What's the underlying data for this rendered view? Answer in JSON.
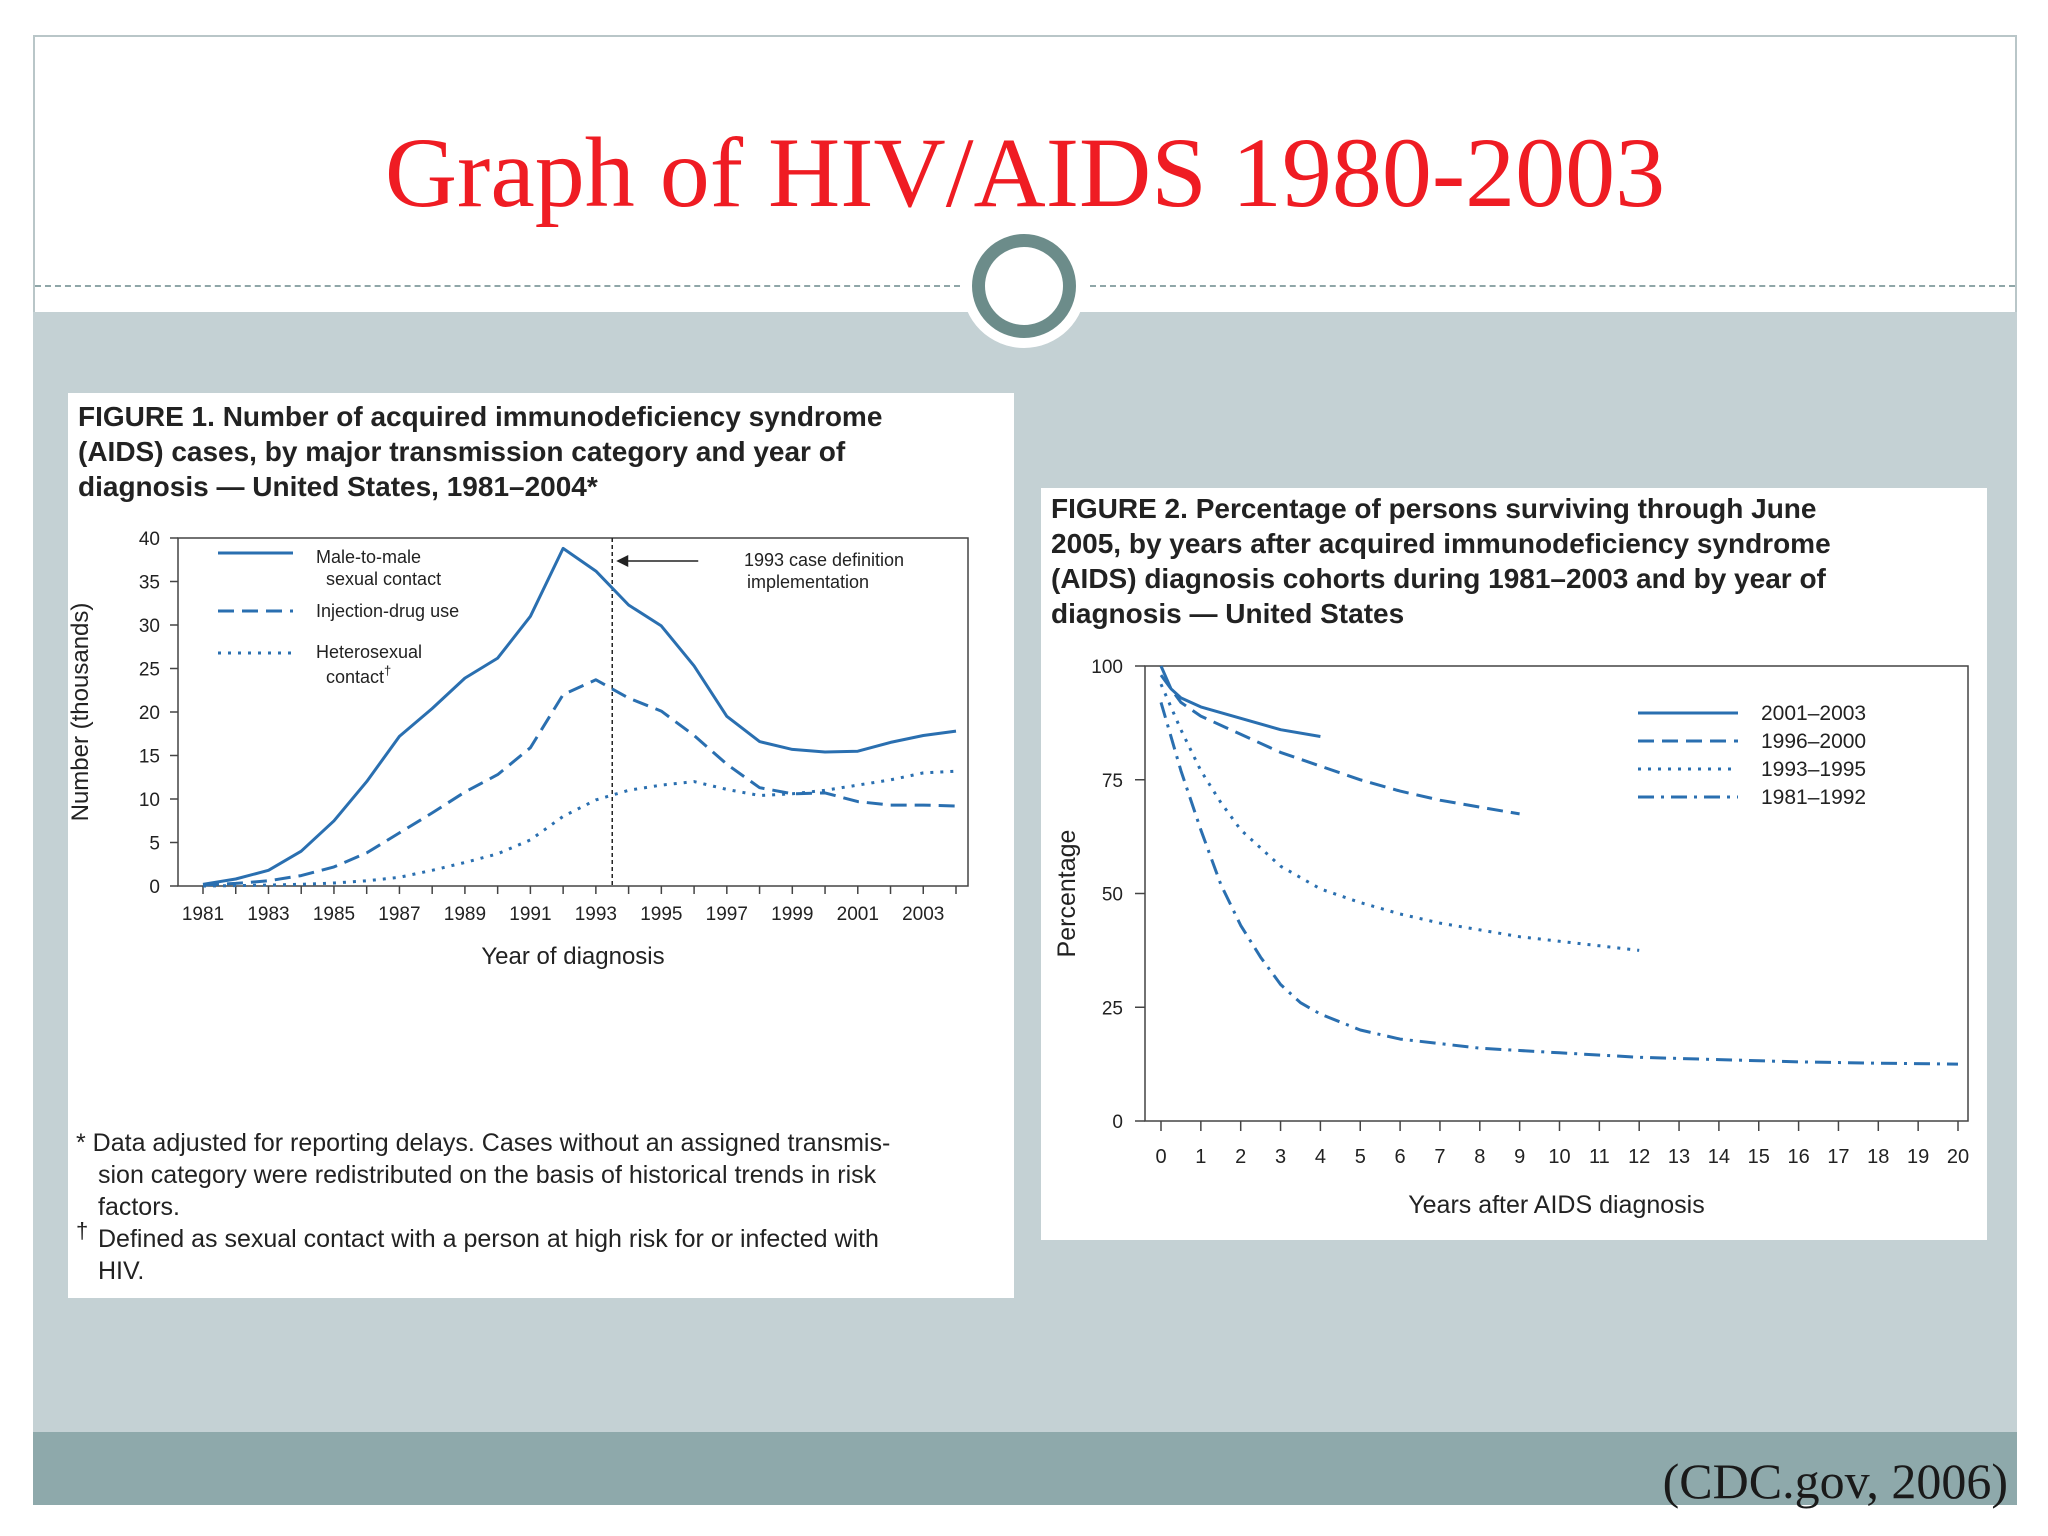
{
  "slide": {
    "title": "Graph of HIV/AIDS 1980-2003",
    "citation": "(CDC.gov, 2006)"
  },
  "figure1": {
    "title_lines": [
      "FIGURE 1. Number of acquired immunodeficiency syndrome",
      "(AIDS) cases, by major transmission category and year of",
      "diagnosis — United States, 1981–2004*"
    ],
    "annotation_lines": [
      "1993 case definition",
      "implementation"
    ],
    "footnotes": [
      "* Data adjusted for reporting delays. Cases without an assigned transmis-",
      "sion category were redistributed on the basis of historical trends in risk",
      "factors.",
      "Defined as sexual contact with a person at high risk for or infected with",
      "HIV."
    ],
    "footnote_mark": "†",
    "legend": [
      {
        "lines": [
          "Male-to-male",
          "sexual contact"
        ],
        "style": "solid"
      },
      {
        "lines": [
          "Injection-drug use"
        ],
        "style": "dashed"
      },
      {
        "lines": [
          "Heterosexual",
          "contact"
        ],
        "style": "dotted",
        "mark": "†"
      }
    ]
  },
  "figure2": {
    "title_lines": [
      "FIGURE 2. Percentage of persons surviving through June",
      "2005, by years after acquired immunodeficiency syndrome",
      "(AIDS) diagnosis cohorts during 1981–2003 and by year of",
      "diagnosis — United States"
    ],
    "legend": [
      {
        "label": "2001–2003",
        "style": "solid"
      },
      {
        "label": "1996–2000",
        "style": "dashed"
      },
      {
        "label": "1993–1995",
        "style": "dotted"
      },
      {
        "label": "1981–1992",
        "style": "dashdot"
      }
    ]
  },
  "colors": {
    "title_red": "#ef1c23",
    "series_blue": "#2a6fb0",
    "band": "#c4d1d4",
    "footer": "#8ea9ab"
  },
  "chart_data": [
    {
      "type": "line",
      "xlabel": "Year of diagnosis",
      "ylabel": "Number (thousands)",
      "xlim": [
        1981,
        2004
      ],
      "ylim": [
        0,
        40
      ],
      "yticks": [
        0,
        5,
        10,
        15,
        20,
        25,
        30,
        35,
        40
      ],
      "xtick_labels": [
        "1981",
        "1983",
        "1985",
        "1987",
        "1989",
        "1991",
        "1993",
        "1995",
        "1997",
        "1999",
        "2001",
        "2003"
      ],
      "vertical_marker": 1993.5,
      "grid": false,
      "x": [
        1981,
        1982,
        1983,
        1984,
        1985,
        1986,
        1987,
        1988,
        1989,
        1990,
        1991,
        1992,
        1993,
        1994,
        1995,
        1996,
        1997,
        1998,
        1999,
        2000,
        2001,
        2002,
        2003,
        2004
      ],
      "series": [
        {
          "name": "Male-to-male sexual contact",
          "style": "solid",
          "values": [
            0.2,
            0.8,
            1.8,
            4.0,
            7.5,
            12.0,
            17.2,
            20.4,
            23.9,
            26.2,
            31.0,
            38.8,
            36.2,
            32.3,
            29.9,
            25.3,
            19.5,
            16.6,
            15.7,
            15.4,
            15.5,
            16.5,
            17.3,
            17.8
          ]
        },
        {
          "name": "Injection-drug use",
          "style": "dashed",
          "values": [
            0.1,
            0.3,
            0.6,
            1.2,
            2.2,
            3.8,
            6.1,
            8.4,
            10.8,
            12.8,
            15.9,
            22.0,
            23.7,
            21.6,
            20.1,
            17.3,
            14.0,
            11.3,
            10.6,
            10.7,
            9.7,
            9.3,
            9.3,
            9.2
          ]
        },
        {
          "name": "Heterosexual contact",
          "style": "dotted",
          "values": [
            0.0,
            0.05,
            0.1,
            0.2,
            0.35,
            0.6,
            1.0,
            1.8,
            2.7,
            3.7,
            5.3,
            8.0,
            9.9,
            11.0,
            11.6,
            12.0,
            11.1,
            10.4,
            10.6,
            11.0,
            11.6,
            12.2,
            13.0,
            13.2
          ]
        }
      ]
    },
    {
      "type": "line",
      "xlabel": "Years after AIDS diagnosis",
      "ylabel": "Percentage",
      "xlim": [
        0,
        20
      ],
      "ylim": [
        0,
        100
      ],
      "yticks": [
        0,
        25,
        50,
        75,
        100
      ],
      "xtick_labels": [
        "0",
        "1",
        "2",
        "3",
        "4",
        "5",
        "6",
        "7",
        "8",
        "9",
        "10",
        "11",
        "12",
        "13",
        "14",
        "15",
        "16",
        "17",
        "18",
        "19",
        "20"
      ],
      "grid": false,
      "series": [
        {
          "name": "2001–2003",
          "style": "solid",
          "x": [
            0,
            0.25,
            0.5,
            1,
            2,
            3,
            4
          ],
          "values": [
            100,
            95,
            93,
            91,
            88.5,
            86,
            84.5
          ]
        },
        {
          "name": "1996–2000",
          "style": "dashed",
          "x": [
            0,
            0.5,
            1,
            2,
            3,
            4,
            5,
            6,
            7,
            8,
            9
          ],
          "values": [
            98,
            92,
            89,
            85,
            81,
            78,
            75,
            72.5,
            70.5,
            69,
            67.5
          ]
        },
        {
          "name": "1993–1995",
          "style": "dotted",
          "x": [
            0,
            0.5,
            1,
            1.5,
            2,
            3,
            4,
            5,
            6,
            7,
            8,
            9,
            10,
            11,
            12
          ],
          "values": [
            96,
            86,
            77,
            70,
            64,
            56,
            51,
            48,
            45.5,
            43.5,
            42,
            40.5,
            39.5,
            38.5,
            37.5
          ]
        },
        {
          "name": "1981–1992",
          "style": "dashdot",
          "x": [
            0,
            0.5,
            1,
            1.5,
            2,
            2.5,
            3,
            3.5,
            4,
            5,
            6,
            7,
            8,
            9,
            10,
            12,
            14,
            16,
            18,
            20
          ],
          "values": [
            92,
            77,
            64,
            52,
            43,
            36,
            30,
            26,
            23.5,
            20,
            18,
            17,
            16,
            15.5,
            15,
            14,
            13.5,
            13,
            12.7,
            12.5
          ]
        }
      ]
    }
  ]
}
